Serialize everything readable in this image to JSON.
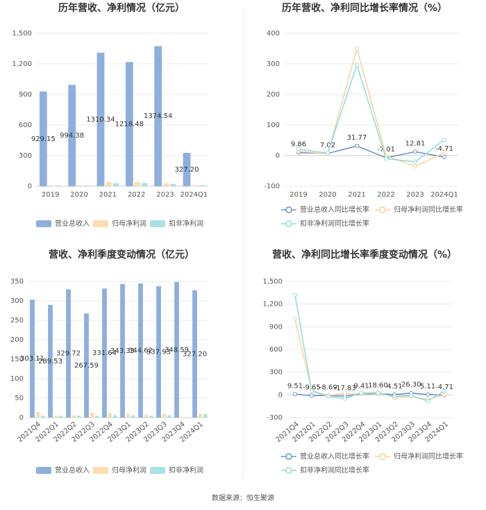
{
  "chart_data": [
    {
      "type": "bar",
      "title": "历年营收、净利情况（亿元）",
      "categories": [
        "2019",
        "2020",
        "2021",
        "2022",
        "2023",
        "2024Q1"
      ],
      "series": [
        {
          "name": "营业总收入",
          "color": "#8eaedd",
          "values": [
            929.15,
            994.38,
            1310.34,
            1218.48,
            1374.54,
            327.2
          ],
          "value_labels": [
            "929.15",
            "994.38",
            "1310.34",
            "1218.48",
            "1374.54",
            "327.20"
          ]
        },
        {
          "name": "归母净利润",
          "color": "#fcdcb0",
          "values": [
            8,
            9,
            40,
            42,
            30,
            10
          ]
        },
        {
          "name": "扣非净利润",
          "color": "#a9e2e2",
          "values": [
            7,
            8,
            30,
            30,
            22,
            10
          ]
        }
      ],
      "ylim": [
        0,
        1500
      ],
      "yticks": [
        0,
        300,
        600,
        900,
        {
          "value": 1200,
          "label": "1,200"
        },
        {
          "value": 1500,
          "label": "1,500"
        }
      ],
      "grid": true
    },
    {
      "type": "line",
      "title": "历年营收、净利同比增长率情况（%）",
      "categories": [
        "2019",
        "2020",
        "2021",
        "2022",
        "2023",
        "2024Q1"
      ],
      "series": [
        {
          "name": "营业总收入同比增长率",
          "color": "#6d8fcb",
          "values": [
            9.86,
            7.02,
            31.77,
            -7.01,
            12.81,
            -4.71
          ]
        },
        {
          "name": "归母净利润同比增长率",
          "color": "#fbd09a",
          "values": [
            15,
            5,
            350,
            0,
            -35,
            10
          ]
        },
        {
          "name": "扣非净利润同比增长率",
          "color": "#8ddcdc",
          "values": [
            22,
            8,
            297,
            -10,
            -20,
            52
          ]
        }
      ],
      "ylim": [
        -100,
        400
      ],
      "yticks": [
        -100,
        0,
        100,
        200,
        300,
        400
      ],
      "grid": true
    },
    {
      "type": "bar",
      "title": "营收、净利季度变动情况（亿元）",
      "categories": [
        "2021Q4",
        "2022Q1",
        "2022Q2",
        "2022Q3",
        "2022Q4",
        "2023Q1",
        "2023Q2",
        "2023Q3",
        "2023Q4",
        "2024Q1"
      ],
      "series": [
        {
          "name": "营业总收入",
          "color": "#8eaedd",
          "values": [
            303.11,
            289.53,
            329.72,
            267.59,
            331.64,
            343.33,
            344.62,
            337.93,
            348.59,
            327.2
          ],
          "value_labels": [
            "303.11",
            "289.53",
            "329.72",
            "267.59",
            "331.64",
            "343.33",
            "344.62",
            "337.93",
            "348.59",
            "327.20"
          ]
        },
        {
          "name": "归母净利润",
          "color": "#fcdcb0",
          "values": [
            14,
            5,
            6,
            13,
            12,
            10,
            7,
            10,
            2,
            10
          ]
        },
        {
          "name": "扣非净利润",
          "color": "#a9e2e2",
          "values": [
            5,
            5,
            5,
            5,
            6,
            6,
            5,
            6,
            1,
            9
          ]
        }
      ],
      "ylim": [
        0,
        350
      ],
      "yticks": [
        0,
        50,
        100,
        150,
        200,
        250,
        300,
        350
      ],
      "grid": true
    },
    {
      "type": "line",
      "title": "营收、净利同比增长率季度变动情况（%）",
      "categories": [
        "2021Q4",
        "2022Q1",
        "2022Q2",
        "2022Q3",
        "2022Q4",
        "2023Q1",
        "2023Q2",
        "2023Q3",
        "2023Q4",
        "2024Q1"
      ],
      "series": [
        {
          "name": "营业总收入同比增长率",
          "color": "#6d8fcb",
          "values": [
            9.51,
            -9.65,
            -8.69,
            -17.83,
            9.41,
            18.6,
            4.51,
            26.3,
            5.11,
            -4.71
          ],
          "value_labels": [
            "9.51",
            "-9.65",
            "-8.69",
            "-17.83",
            "9.41",
            "18.60",
            "4.51",
            "26.30",
            "5.11",
            "-4.71"
          ]
        },
        {
          "name": "归母净利润同比增长率",
          "color": "#fbd09a",
          "values": [
            1000,
            60,
            -10,
            20,
            10,
            40,
            -40,
            -20,
            -60,
            0
          ]
        },
        {
          "name": "扣非净利润同比增长率",
          "color": "#8ddcdc",
          "values": [
            1320,
            50,
            -20,
            -50,
            30,
            20,
            -20,
            -10,
            -80,
            50
          ]
        }
      ],
      "ylim": [
        -300,
        1500
      ],
      "yticks": [
        -300,
        0,
        300,
        600,
        900,
        {
          "value": 1200,
          "label": "1,200"
        },
        {
          "value": 1500,
          "label": "1,500"
        }
      ],
      "grid": true
    }
  ],
  "footer": "数据来源：恒生聚源"
}
